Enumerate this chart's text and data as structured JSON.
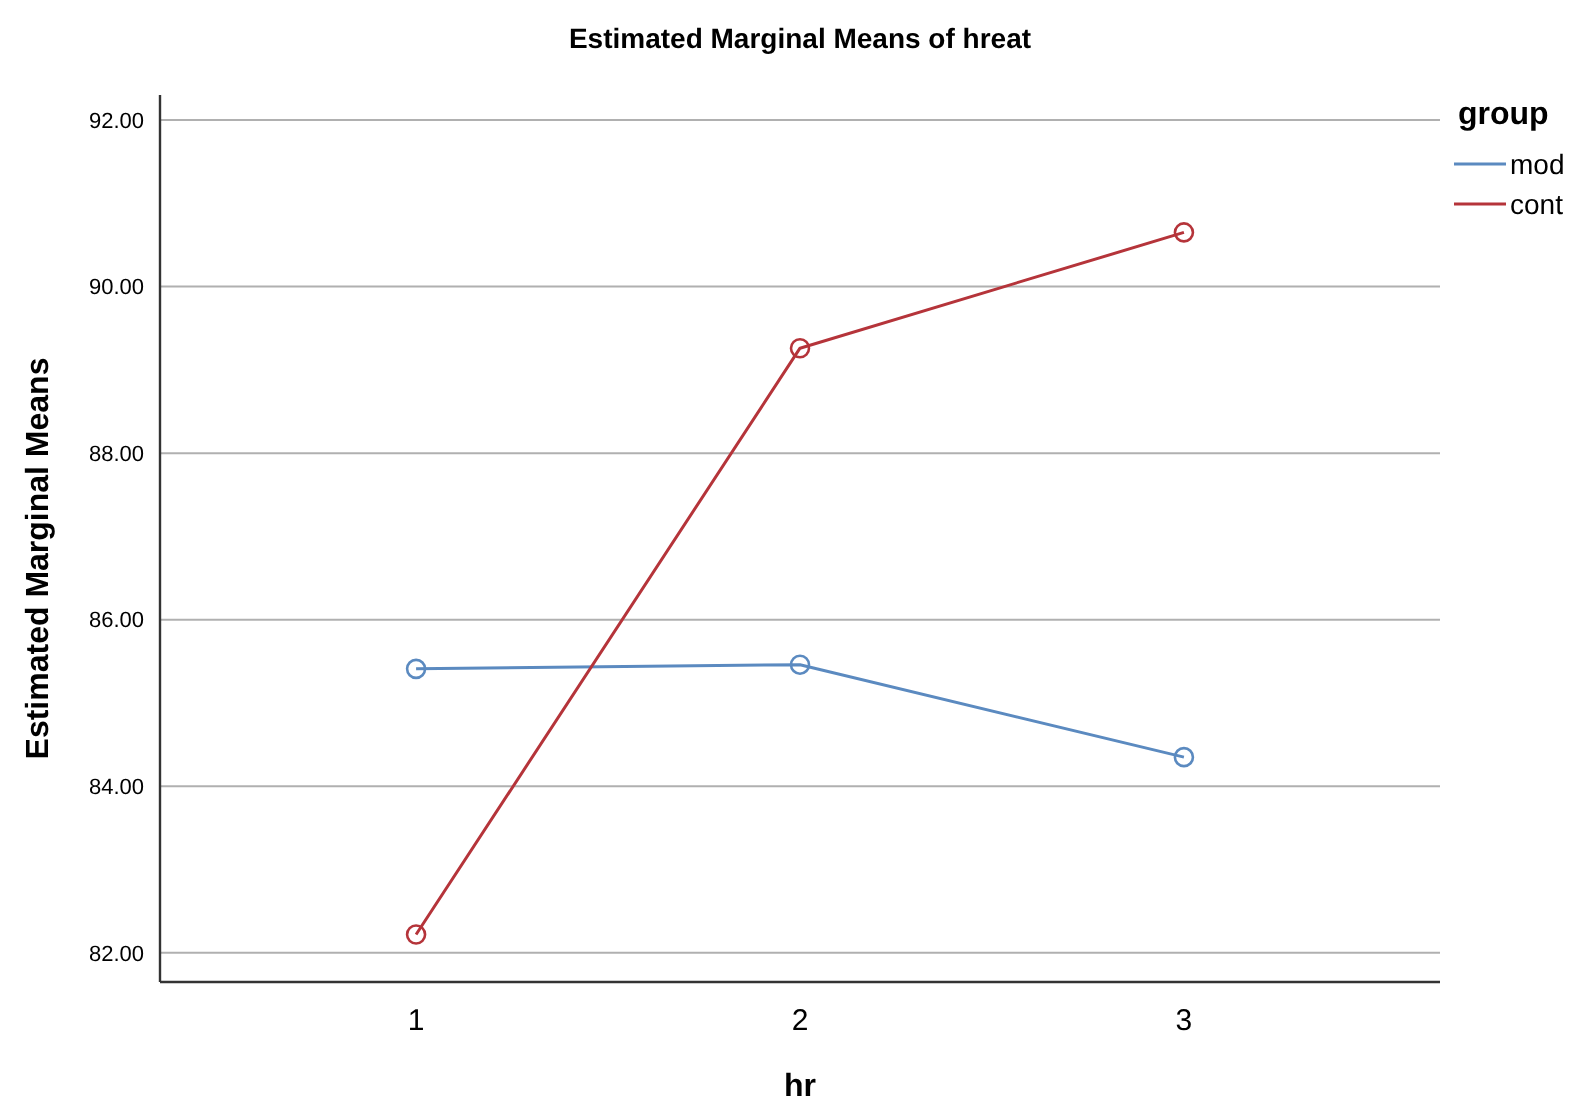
{
  "chart_data": {
    "type": "line",
    "title": "Estimated Marginal Means of hreat",
    "xlabel": "hr",
    "ylabel": "Estimated Marginal Means",
    "legend_title": "group",
    "categories": [
      "1",
      "2",
      "3"
    ],
    "series": [
      {
        "name": "mod",
        "color": "#5b8ac0",
        "values": [
          85.41,
          85.46,
          84.35
        ]
      },
      {
        "name": "cont",
        "color": "#b5343a",
        "values": [
          82.22,
          89.26,
          90.65
        ]
      }
    ],
    "ylim": [
      81.65,
      92.3
    ],
    "yticks": [
      {
        "value": 82,
        "label": "82.00"
      },
      {
        "value": 84,
        "label": "84.00"
      },
      {
        "value": 86,
        "label": "86.00"
      },
      {
        "value": 88,
        "label": "88.00"
      },
      {
        "value": 90,
        "label": "90.00"
      },
      {
        "value": 92,
        "label": "92.00"
      }
    ],
    "grid": "y",
    "legend": "top right",
    "marker": "circle"
  }
}
